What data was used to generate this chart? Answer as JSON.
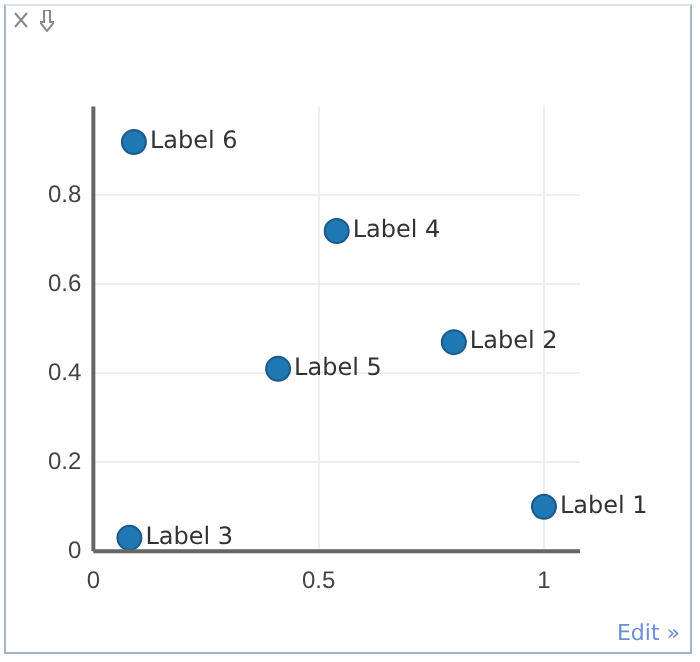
{
  "chart_data": {
    "type": "scatter",
    "x": [
      1.0,
      0.8,
      0.08,
      0.54,
      0.41,
      0.09
    ],
    "values": [
      0.1,
      0.47,
      0.03,
      0.72,
      0.41,
      0.92
    ],
    "color": "#1f77b4",
    "marker": "circle",
    "xlim": [
      0,
      1.08
    ],
    "xticks": [
      0,
      0.5,
      1
    ],
    "ylim": [
      0,
      1
    ],
    "yticks": [
      0,
      0.2,
      0.4,
      0.6,
      0.8
    ],
    "grid": true,
    "legend": false,
    "annotations": [
      {
        "text": "Label 1",
        "x": 1.0,
        "y": 0.1
      },
      {
        "text": "Label 2",
        "x": 0.8,
        "y": 0.47
      },
      {
        "text": "Label 3",
        "x": 0.08,
        "y": 0.03
      },
      {
        "text": "Label 4",
        "x": 0.54,
        "y": 0.72
      },
      {
        "text": "Label 5",
        "x": 0.41,
        "y": 0.41
      },
      {
        "text": "Label 6",
        "x": 0.09,
        "y": 0.92
      },
      "Edit »"
    ]
  }
}
